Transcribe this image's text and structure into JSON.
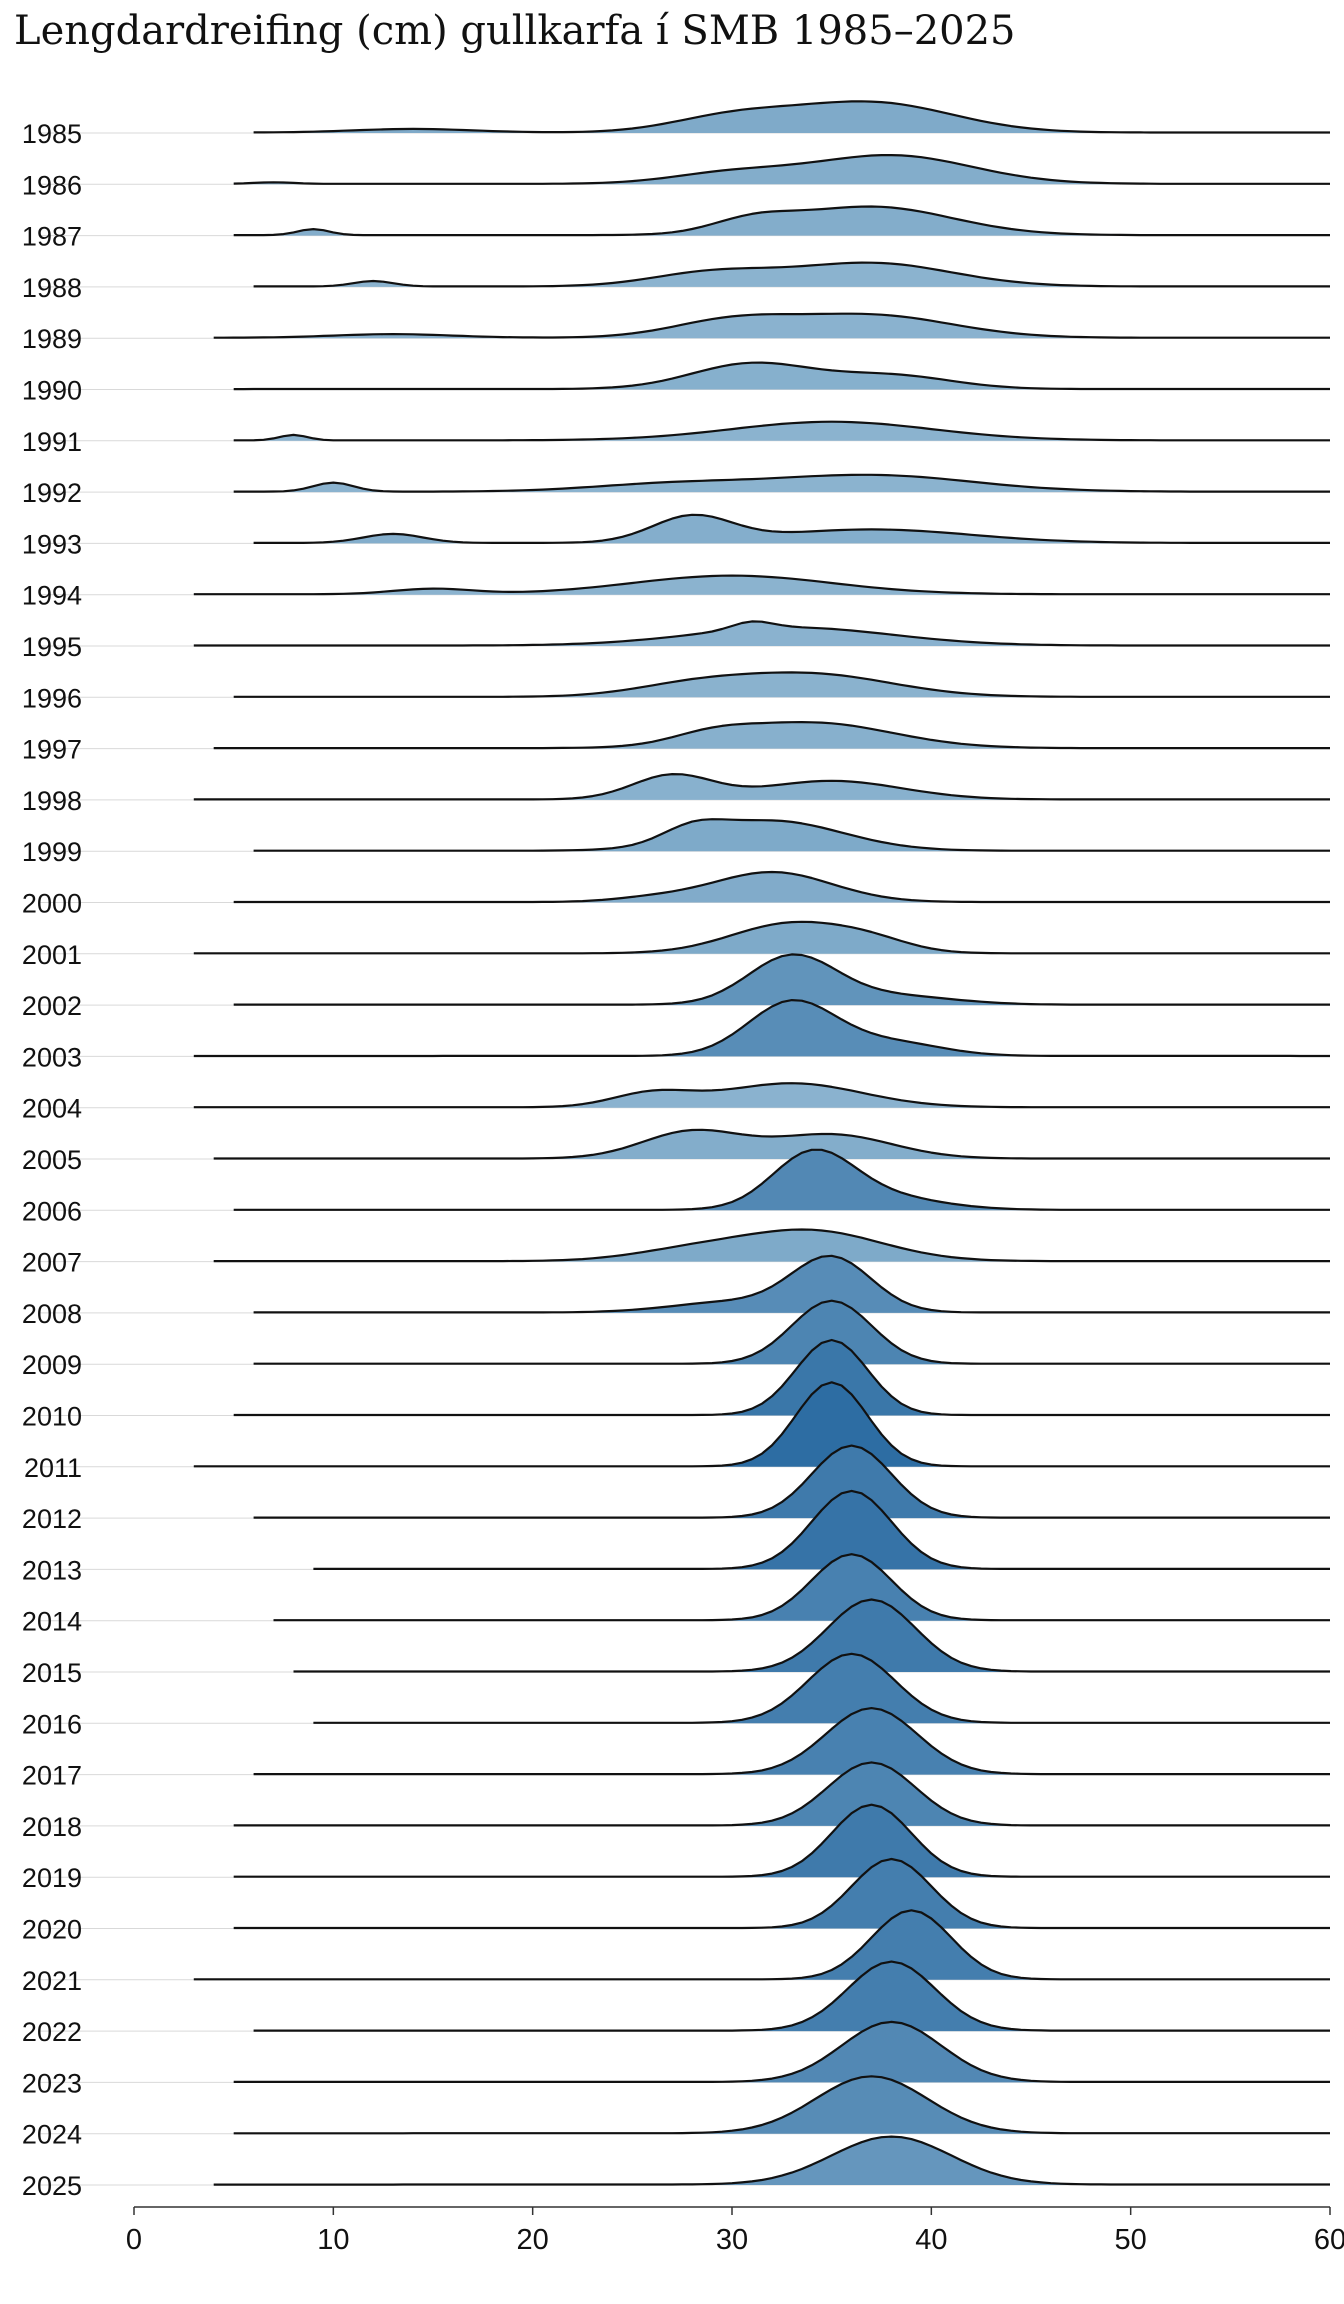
{
  "title": "Lengdardreifing (cm) gullkarfa í SMB 1985–2025",
  "chart_data": {
    "type": "ridgeline",
    "title": "Lengdardreifing (cm) gullkarfa í SMB 1985–2025",
    "xlabel": "",
    "ylabel": "",
    "xlim": [
      0,
      60
    ],
    "x_ticks": [
      0,
      10,
      20,
      30,
      40,
      50,
      60
    ],
    "categories": [
      "1985",
      "1986",
      "1987",
      "1988",
      "1989",
      "1990",
      "1991",
      "1992",
      "1993",
      "1994",
      "1995",
      "1996",
      "1997",
      "1998",
      "1999",
      "2000",
      "2001",
      "2002",
      "2003",
      "2004",
      "2005",
      "2006",
      "2007",
      "2008",
      "2009",
      "2010",
      "2011",
      "2012",
      "2013",
      "2014",
      "2015",
      "2016",
      "2017",
      "2018",
      "2019",
      "2020",
      "2021",
      "2022",
      "2023",
      "2024",
      "2025"
    ],
    "colors": {
      "low": "#8bb3cf",
      "high": "#2d6da3",
      "line": "#111111",
      "baseline": "#d9d9d9"
    },
    "series": [
      {
        "year": "1985",
        "range": [
          6,
          60
        ],
        "peaks": [
          [
            37,
            1.0,
            4.0
          ],
          [
            30,
            0.5,
            3.0
          ],
          [
            14,
            0.12,
            3.0
          ]
        ]
      },
      {
        "year": "1986",
        "range": [
          5,
          60
        ],
        "peaks": [
          [
            38,
            0.95,
            4.0
          ],
          [
            30,
            0.35,
            3.0
          ],
          [
            7,
            0.05,
            1.0
          ]
        ]
      },
      {
        "year": "1987",
        "range": [
          5,
          60
        ],
        "peaks": [
          [
            37,
            0.95,
            4.0
          ],
          [
            31,
            0.4,
            2.0
          ],
          [
            9,
            0.2,
            0.8
          ]
        ]
      },
      {
        "year": "1988",
        "range": [
          6,
          60
        ],
        "peaks": [
          [
            37,
            0.78,
            4.0
          ],
          [
            29,
            0.45,
            3.0
          ],
          [
            12,
            0.18,
            1.0
          ]
        ]
      },
      {
        "year": "1989",
        "range": [
          4,
          60
        ],
        "peaks": [
          [
            37,
            0.75,
            4.0
          ],
          [
            30,
            0.55,
            3.0
          ],
          [
            13,
            0.12,
            3.0
          ]
        ]
      },
      {
        "year": "1990",
        "range": [
          5,
          60
        ],
        "peaks": [
          [
            31,
            0.85,
            3.0
          ],
          [
            38,
            0.45,
            3.0
          ]
        ]
      },
      {
        "year": "1991",
        "range": [
          5,
          60
        ],
        "peaks": [
          [
            35,
            0.62,
            5.0
          ],
          [
            8,
            0.18,
            0.7
          ]
        ]
      },
      {
        "year": "1992",
        "range": [
          5,
          60
        ],
        "peaks": [
          [
            37,
            0.55,
            5.0
          ],
          [
            10,
            0.3,
            1.0
          ],
          [
            27,
            0.25,
            4.0
          ]
        ]
      },
      {
        "year": "1993",
        "range": [
          6,
          60
        ],
        "peaks": [
          [
            28,
            0.85,
            2.0
          ],
          [
            13,
            0.3,
            1.5
          ],
          [
            37,
            0.45,
            5.0
          ]
        ]
      },
      {
        "year": "1994",
        "range": [
          3,
          60
        ],
        "peaks": [
          [
            30,
            0.62,
            5.0
          ],
          [
            15,
            0.18,
            2.0
          ]
        ]
      },
      {
        "year": "1995",
        "range": [
          3,
          60
        ],
        "peaks": [
          [
            33,
            0.6,
            5.0
          ],
          [
            31,
            0.25,
            1.0
          ]
        ]
      },
      {
        "year": "1996",
        "range": [
          5,
          60
        ],
        "peaks": [
          [
            34,
            0.75,
            4.0
          ],
          [
            28,
            0.35,
            3.0
          ]
        ]
      },
      {
        "year": "1997",
        "range": [
          4,
          60
        ],
        "peaks": [
          [
            34,
            0.85,
            4.0
          ],
          [
            29,
            0.3,
            2.0
          ]
        ]
      },
      {
        "year": "1998",
        "range": [
          3,
          60
        ],
        "peaks": [
          [
            27,
            0.8,
            2.0
          ],
          [
            35,
            0.62,
            3.5
          ]
        ]
      },
      {
        "year": "1999",
        "range": [
          6,
          60
        ],
        "peaks": [
          [
            32,
            1.0,
            3.5
          ],
          [
            28,
            0.45,
            1.5
          ]
        ]
      },
      {
        "year": "2000",
        "range": [
          5,
          60
        ],
        "peaks": [
          [
            32,
            1.0,
            3.0
          ],
          [
            26,
            0.12,
            2.0
          ]
        ]
      },
      {
        "year": "2001",
        "range": [
          3,
          60
        ],
        "peaks": [
          [
            33,
            1.0,
            3.0
          ],
          [
            37,
            0.3,
            2.0
          ]
        ]
      },
      {
        "year": "2002",
        "range": [
          5,
          60
        ],
        "peaks": [
          [
            33,
            1.6,
            2.2
          ],
          [
            38,
            0.3,
            3.0
          ]
        ]
      },
      {
        "year": "2003",
        "range": [
          3,
          60
        ],
        "peaks": [
          [
            33,
            1.8,
            2.2
          ],
          [
            38,
            0.45,
            2.5
          ]
        ]
      },
      {
        "year": "2004",
        "range": [
          3,
          60
        ],
        "peaks": [
          [
            33,
            0.8,
            3.5
          ],
          [
            26,
            0.45,
            2.0
          ]
        ]
      },
      {
        "year": "2005",
        "range": [
          4,
          60
        ],
        "peaks": [
          [
            35,
            0.8,
            3.0
          ],
          [
            28,
            0.9,
            2.5
          ]
        ]
      },
      {
        "year": "2006",
        "range": [
          5,
          60
        ],
        "peaks": [
          [
            34,
            1.7,
            2.0
          ],
          [
            37,
            0.5,
            3.0
          ]
        ]
      },
      {
        "year": "2007",
        "range": [
          4,
          60
        ],
        "peaks": [
          [
            34,
            1.0,
            3.5
          ],
          [
            28,
            0.35,
            3.0
          ]
        ]
      },
      {
        "year": "2008",
        "range": [
          6,
          60
        ],
        "peaks": [
          [
            35,
            1.8,
            2.0
          ],
          [
            30,
            0.35,
            3.0
          ]
        ]
      },
      {
        "year": "2009",
        "range": [
          6,
          60
        ],
        "peaks": [
          [
            35,
            2.1,
            2.0
          ]
        ]
      },
      {
        "year": "2010",
        "range": [
          5,
          60
        ],
        "peaks": [
          [
            35,
            2.5,
            1.8
          ]
        ]
      },
      {
        "year": "2011",
        "range": [
          3,
          60
        ],
        "peaks": [
          [
            35,
            2.8,
            1.8
          ]
        ]
      },
      {
        "year": "2012",
        "range": [
          6,
          60
        ],
        "peaks": [
          [
            36,
            2.4,
            2.0
          ]
        ]
      },
      {
        "year": "2013",
        "range": [
          9,
          60
        ],
        "peaks": [
          [
            36,
            2.6,
            2.0
          ]
        ]
      },
      {
        "year": "2014",
        "range": [
          7,
          60
        ],
        "peaks": [
          [
            36,
            2.2,
            2.0
          ]
        ]
      },
      {
        "year": "2015",
        "range": [
          8,
          60
        ],
        "peaks": [
          [
            37,
            2.4,
            2.2
          ]
        ]
      },
      {
        "year": "2016",
        "range": [
          9,
          60
        ],
        "peaks": [
          [
            36,
            2.3,
            2.2
          ]
        ]
      },
      {
        "year": "2017",
        "range": [
          6,
          60
        ],
        "peaks": [
          [
            37,
            2.2,
            2.3
          ]
        ]
      },
      {
        "year": "2018",
        "range": [
          5,
          60
        ],
        "peaks": [
          [
            37,
            2.1,
            2.2
          ]
        ]
      },
      {
        "year": "2019",
        "range": [
          5,
          60
        ],
        "peaks": [
          [
            37,
            2.4,
            2.0
          ]
        ]
      },
      {
        "year": "2020",
        "range": [
          5,
          60
        ],
        "peaks": [
          [
            38,
            2.3,
            2.0
          ]
        ]
      },
      {
        "year": "2021",
        "range": [
          3,
          60
        ],
        "peaks": [
          [
            39,
            2.3,
            2.0
          ]
        ]
      },
      {
        "year": "2022",
        "range": [
          6,
          60
        ],
        "peaks": [
          [
            38,
            2.3,
            2.2
          ]
        ]
      },
      {
        "year": "2023",
        "range": [
          5,
          60
        ],
        "peaks": [
          [
            38,
            2.0,
            2.5
          ]
        ]
      },
      {
        "year": "2024",
        "range": [
          5,
          60
        ],
        "peaks": [
          [
            37,
            1.9,
            2.8
          ]
        ]
      },
      {
        "year": "2025",
        "range": [
          4,
          60
        ],
        "peaks": [
          [
            38,
            1.6,
            3.0
          ]
        ]
      }
    ]
  }
}
